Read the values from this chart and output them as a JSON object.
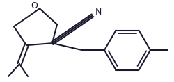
{
  "bg_color": "#ffffff",
  "line_color": "#1a1a2e",
  "line_width": 1.5,
  "font_size_O": 9,
  "font_size_N": 9,
  "fig_w": 2.51,
  "fig_h": 1.18,
  "dpi": 100
}
